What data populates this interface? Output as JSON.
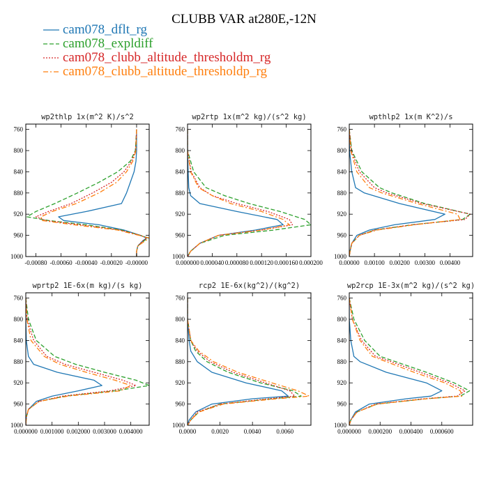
{
  "figure": {
    "title": "CLUBB VAR at280E,-12N"
  },
  "colors": {
    "cam078_dflt_rg": "#1f77b4",
    "cam078_expldiff": "#2ca02c",
    "cam078_clubb_altitude_thresholdm_rg": "#d62728",
    "cam078_clubb_altitude_thresholdp_rg": "#ff7f0e"
  },
  "legend": [
    {
      "name": "cam078_dflt_rg",
      "color": "#1f77b4",
      "dash": "solid"
    },
    {
      "name": "cam078_expldiff",
      "color": "#2ca02c",
      "dash": "dashed"
    },
    {
      "name": "cam078_clubb_altitude_thresholdm_rg",
      "color": "#d62728",
      "dash": "dotted"
    },
    {
      "name": "cam078_clubb_altitude_thresholdp_rg",
      "color": "#ff7f0e",
      "dash": "dashdot"
    }
  ],
  "chart_data": [
    {
      "type": "line",
      "title": "wp2thlp  1x(m^2 K)/s^2",
      "xlim": [
        -0.00088,
        0.0001
      ],
      "ylim": [
        1000,
        750
      ],
      "yticks": [
        760,
        800,
        840,
        880,
        920,
        960,
        1000
      ],
      "xticks": [
        -0.0008,
        -0.0006,
        -0.0004,
        -0.0002,
        0.0
      ],
      "xticklabels": [
        "-0.00080",
        "-0.00060",
        "-0.00040",
        "-0.00020",
        "-0.00000"
      ],
      "y": [
        760,
        800,
        820,
        840,
        860,
        880,
        900,
        915,
        925,
        932,
        940,
        950,
        960,
        965,
        970,
        980,
        990,
        995,
        1000
      ],
      "series": [
        {
          "name": "cam078_dflt_rg",
          "values": [
            0.0,
            0.0,
            -5e-06,
            -2e-05,
            -5e-05,
            -8e-05,
            -0.00012,
            -0.0004,
            -0.00062,
            -0.00058,
            -0.0003,
            -0.0001,
            3e-05,
            8e-05,
            5e-05,
            1e-05,
            0.0,
            0.0,
            0.0
          ]
        },
        {
          "name": "cam078_expldiff",
          "values": [
            0.0,
            -1e-05,
            -5e-05,
            -0.00015,
            -0.0003,
            -0.00047,
            -0.00065,
            -0.0008,
            -0.00087,
            -0.0007,
            -0.0004,
            -0.00012,
            3e-05,
            9e-05,
            6e-05,
            1e-05,
            0.0,
            0.0,
            0.0
          ]
        },
        {
          "name": "cam078_clubb_altitude_thresholdm_rg",
          "values": [
            0.0,
            -8e-06,
            -4e-05,
            -0.0001,
            -0.0002,
            -0.00035,
            -0.00052,
            -0.0007,
            -0.0008,
            -0.00072,
            -0.00045,
            -0.00013,
            3e-05,
            8e-05,
            5e-05,
            1e-05,
            0.0,
            0.0,
            0.0
          ]
        },
        {
          "name": "cam078_clubb_altitude_thresholdp_rg",
          "values": [
            0.0,
            -5e-06,
            -3e-05,
            -8e-05,
            -0.00016,
            -0.0003,
            -0.00048,
            -0.00067,
            -0.00076,
            -0.00075,
            -0.0005,
            -0.00015,
            2e-05,
            0.0001,
            7e-05,
            1e-05,
            0.0,
            0.0,
            0.0
          ]
        }
      ]
    },
    {
      "type": "line",
      "title": "wp2rtp  1x(m^2 kg)/(s^2 kg)",
      "xlim": [
        0.0,
        0.0002
      ],
      "ylim": [
        1000,
        750
      ],
      "yticks": [
        760,
        800,
        840,
        880,
        920,
        960,
        1000
      ],
      "xticks": [
        0.0,
        4e-05,
        8e-05,
        0.00012,
        0.00016,
        0.0002
      ],
      "xticklabels": [
        "0.000000",
        "0.000040",
        "0.000080",
        "0.000120",
        "0.000160",
        "0.000200"
      ],
      "y": [
        760,
        800,
        840,
        870,
        885,
        900,
        915,
        930,
        940,
        950,
        960,
        975,
        990,
        1000
      ],
      "series": [
        {
          "name": "cam078_dflt_rg",
          "values": [
            0.0,
            0.0,
            1e-06,
            2e-06,
            5e-06,
            2e-05,
            8e-05,
            0.000145,
            0.000155,
            0.00011,
            5e-05,
            2e-05,
            5e-06,
            0.0
          ]
        },
        {
          "name": "cam078_expldiff",
          "values": [
            0.0,
            0.0,
            1e-05,
            3e-05,
            6e-05,
            0.0001,
            0.00015,
            0.00019,
            0.0002,
            0.00014,
            6e-05,
            2e-05,
            5e-06,
            0.0
          ]
        },
        {
          "name": "cam078_clubb_altitude_thresholdm_rg",
          "values": [
            0.0,
            0.0,
            6e-06,
            2e-05,
            4e-05,
            8e-05,
            0.00013,
            0.000165,
            0.00017,
            0.00012,
            5e-05,
            2e-05,
            5e-06,
            0.0
          ]
        },
        {
          "name": "cam078_clubb_altitude_thresholdp_rg",
          "values": [
            0.0,
            0.0,
            5e-06,
            1.8e-05,
            4e-05,
            7e-05,
            0.00012,
            0.000155,
            0.000165,
            0.00012,
            5e-05,
            2e-05,
            5e-06,
            0.0
          ]
        }
      ]
    },
    {
      "type": "line",
      "title": "wpthlp2  1x(m K^2)/s",
      "xlim": [
        0.0,
        0.0049
      ],
      "ylim": [
        1000,
        750
      ],
      "yticks": [
        760,
        800,
        840,
        880,
        920,
        960,
        1000
      ],
      "xticks": [
        0.0,
        0.001,
        0.002,
        0.003,
        0.004
      ],
      "xticklabels": [
        "0.00000",
        "0.00100",
        "0.00200",
        "0.00300",
        "0.00400"
      ],
      "y": [
        760,
        800,
        840,
        870,
        880,
        900,
        920,
        930,
        940,
        950,
        960,
        975,
        990,
        1000
      ],
      "series": [
        {
          "name": "cam078_dflt_rg",
          "values": [
            0.0,
            1e-05,
            0.0001,
            0.00025,
            0.0006,
            0.002,
            0.0038,
            0.0034,
            0.0018,
            0.0008,
            0.0003,
            0.0001,
            3e-05,
            0.0
          ]
        },
        {
          "name": "cam078_expldiff",
          "values": [
            0.0,
            0.0001,
            0.0005,
            0.0012,
            0.0017,
            0.003,
            0.0048,
            0.0045,
            0.0025,
            0.001,
            0.0004,
            0.0001,
            3e-05,
            0.0
          ]
        },
        {
          "name": "cam078_clubb_altitude_thresholdm_rg",
          "values": [
            0.0,
            8e-05,
            0.0004,
            0.001,
            0.0015,
            0.0029,
            0.0048,
            0.0046,
            0.0025,
            0.001,
            0.0004,
            0.0001,
            3e-05,
            0.0
          ]
        },
        {
          "name": "cam078_clubb_altitude_thresholdp_rg",
          "values": [
            0.0,
            6e-05,
            0.0003,
            0.0008,
            0.0013,
            0.0027,
            0.0043,
            0.0044,
            0.0026,
            0.0011,
            0.0004,
            0.0001,
            3e-05,
            0.0
          ]
        }
      ]
    },
    {
      "type": "line",
      "title": "wprtp2  1E-6x(m kg)/(s kg)",
      "xlim": [
        0.0,
        0.0047
      ],
      "ylim": [
        1000,
        750
      ],
      "yticks": [
        760,
        800,
        840,
        880,
        920,
        960,
        1000
      ],
      "xticks": [
        0.0,
        0.001,
        0.002,
        0.003,
        0.004
      ],
      "xticklabels": [
        "0.000000",
        "0.001000",
        "0.002000",
        "0.003000",
        "0.004000"
      ],
      "y": [
        760,
        800,
        840,
        870,
        885,
        900,
        915,
        925,
        935,
        945,
        955,
        970,
        985,
        1000
      ],
      "series": [
        {
          "name": "cam078_dflt_rg",
          "values": [
            0.0,
            0.0,
            2e-05,
            0.0001,
            0.0003,
            0.0012,
            0.0026,
            0.0029,
            0.002,
            0.001,
            0.0004,
            0.0001,
            2e-05,
            0.0
          ]
        },
        {
          "name": "cam078_expldiff",
          "values": [
            0.0,
            0.0001,
            0.0004,
            0.0011,
            0.0019,
            0.003,
            0.0042,
            0.0047,
            0.0034,
            0.0015,
            0.0005,
            0.0001,
            2e-05,
            0.0
          ]
        },
        {
          "name": "cam078_clubb_altitude_thresholdm_rg",
          "values": [
            0.0,
            5e-05,
            0.0003,
            0.0008,
            0.0015,
            0.0026,
            0.0037,
            0.0042,
            0.0032,
            0.0014,
            0.0005,
            0.0001,
            2e-05,
            0.0
          ]
        },
        {
          "name": "cam078_clubb_altitude_thresholdp_rg",
          "values": [
            0.0,
            4e-05,
            0.0002,
            0.0007,
            0.0013,
            0.0023,
            0.0034,
            0.004,
            0.0036,
            0.0016,
            0.0005,
            0.0001,
            2e-05,
            0.0
          ]
        }
      ]
    },
    {
      "type": "line",
      "title": "rcp2  1E-6x(kg^2)/(kg^2)",
      "xlim": [
        0.0,
        0.0076
      ],
      "ylim": [
        1000,
        750
      ],
      "yticks": [
        760,
        800,
        840,
        880,
        920,
        960,
        1000
      ],
      "xticks": [
        0.0,
        0.002,
        0.004,
        0.006
      ],
      "xticklabels": [
        "0.0000",
        "0.0020",
        "0.0040",
        "0.0060"
      ],
      "y": [
        760,
        800,
        840,
        860,
        880,
        900,
        920,
        935,
        945,
        950,
        960,
        975,
        990,
        1000
      ],
      "series": [
        {
          "name": "cam078_dflt_rg",
          "values": [
            0.0,
            0.0,
            0.0001,
            0.0002,
            0.0006,
            0.0015,
            0.0036,
            0.0058,
            0.0062,
            0.004,
            0.0015,
            0.0005,
            0.0001,
            0.0
          ]
        },
        {
          "name": "cam078_expldiff",
          "values": [
            0.0,
            0.0,
            0.0002,
            0.0005,
            0.0012,
            0.0025,
            0.0045,
            0.0065,
            0.007,
            0.0052,
            0.002,
            0.0007,
            0.0002,
            0.0
          ]
        },
        {
          "name": "cam078_clubb_altitude_thresholdm_rg",
          "values": [
            0.0,
            0.0,
            0.0002,
            0.0006,
            0.0014,
            0.0028,
            0.0048,
            0.0063,
            0.0066,
            0.005,
            0.002,
            0.0006,
            0.0002,
            0.0
          ]
        },
        {
          "name": "cam078_clubb_altitude_thresholdp_rg",
          "values": [
            0.0,
            0.0,
            0.0002,
            0.0007,
            0.0016,
            0.0031,
            0.0052,
            0.0068,
            0.0075,
            0.0055,
            0.0022,
            0.0007,
            0.0002,
            0.0
          ]
        }
      ]
    },
    {
      "type": "line",
      "title": "wp2rcp  1E-3x(m^2 kg)/(s^2 kg)",
      "xlim": [
        0.0,
        0.0008
      ],
      "ylim": [
        1000,
        750
      ],
      "yticks": [
        760,
        800,
        840,
        880,
        920,
        960,
        1000
      ],
      "xticks": [
        0.0,
        0.0002,
        0.0004,
        0.0006
      ],
      "xticklabels": [
        "0.000000",
        "0.000200",
        "0.000400",
        "0.000600"
      ],
      "y": [
        760,
        800,
        840,
        870,
        880,
        900,
        920,
        935,
        945,
        950,
        960,
        975,
        990,
        1000
      ],
      "series": [
        {
          "name": "cam078_dflt_rg",
          "values": [
            0.0,
            0.0,
            1e-05,
            3e-05,
            7e-05,
            0.00024,
            0.0005,
            0.0006,
            0.00053,
            0.00037,
            0.00013,
            4e-05,
            1e-05,
            0.0
          ]
        },
        {
          "name": "cam078_expldiff",
          "values": [
            0.0,
            3e-05,
            0.0001,
            0.0002,
            0.0003,
            0.0005,
            0.00068,
            0.00078,
            0.00072,
            0.0005,
            0.00018,
            5e-05,
            1e-05,
            0.0
          ]
        },
        {
          "name": "cam078_clubb_altitude_thresholdm_rg",
          "values": [
            0.0,
            2e-05,
            8e-05,
            0.00017,
            0.00027,
            0.00046,
            0.00065,
            0.00075,
            0.0007,
            0.00048,
            0.00017,
            5e-05,
            1e-05,
            0.0
          ]
        },
        {
          "name": "cam078_clubb_altitude_thresholdp_rg",
          "values": [
            0.0,
            2e-05,
            7e-05,
            0.00015,
            0.00024,
            0.00042,
            0.00062,
            0.00072,
            0.00073,
            0.0005,
            0.00018,
            5e-05,
            1e-05,
            0.0
          ]
        }
      ]
    }
  ]
}
